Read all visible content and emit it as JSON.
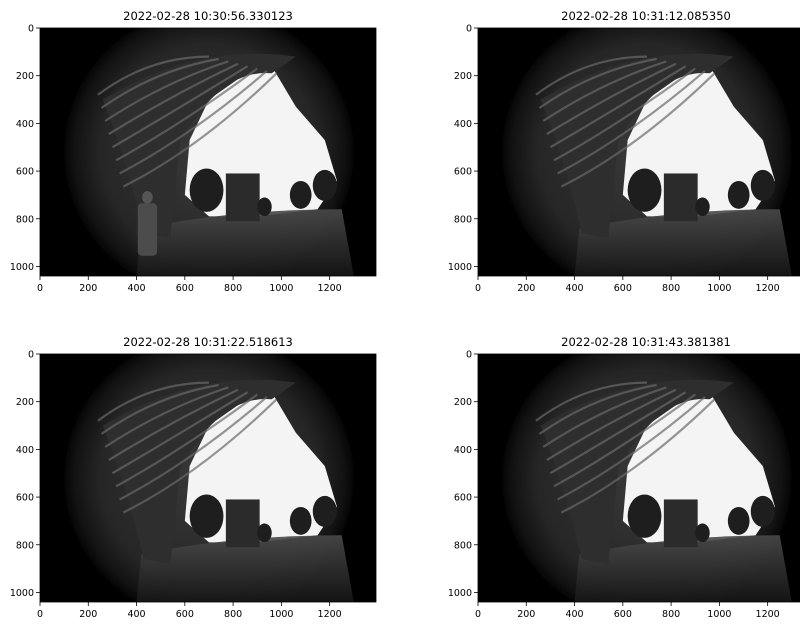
{
  "figure": {
    "panels": [
      {
        "title": "2022-02-28 10:30:56.330123",
        "xticks": [
          "0",
          "200",
          "400",
          "600",
          "800",
          "1000",
          "1200"
        ],
        "yticks": [
          "0",
          "200",
          "400",
          "600",
          "800",
          "1000"
        ],
        "xlim": [
          0,
          1392
        ],
        "ylim": [
          1040,
          0
        ],
        "has_person": true
      },
      {
        "title": "2022-02-28 10:31:12.085350",
        "xticks": [
          "0",
          "200",
          "400",
          "600",
          "800",
          "1000",
          "1200"
        ],
        "yticks": [
          "0",
          "200",
          "400",
          "600",
          "800",
          "1000"
        ],
        "xlim": [
          0,
          1392
        ],
        "ylim": [
          1040,
          0
        ],
        "has_person": false
      },
      {
        "title": "2022-02-28 10:31:22.518613",
        "xticks": [
          "0",
          "200",
          "400",
          "600",
          "800",
          "1000",
          "1200"
        ],
        "yticks": [
          "0",
          "200",
          "400",
          "600",
          "800",
          "1000"
        ],
        "xlim": [
          0,
          1392
        ],
        "ylim": [
          1040,
          0
        ],
        "has_person": false
      },
      {
        "title": "2022-02-28 10:31:43.381381",
        "xticks": [
          "0",
          "200",
          "400",
          "600",
          "800",
          "1000",
          "1200"
        ],
        "yticks": [
          "0",
          "200",
          "400",
          "600",
          "800",
          "1000"
        ],
        "xlim": [
          0,
          1392
        ],
        "ylim": [
          1040,
          0
        ],
        "has_person": false
      }
    ]
  }
}
